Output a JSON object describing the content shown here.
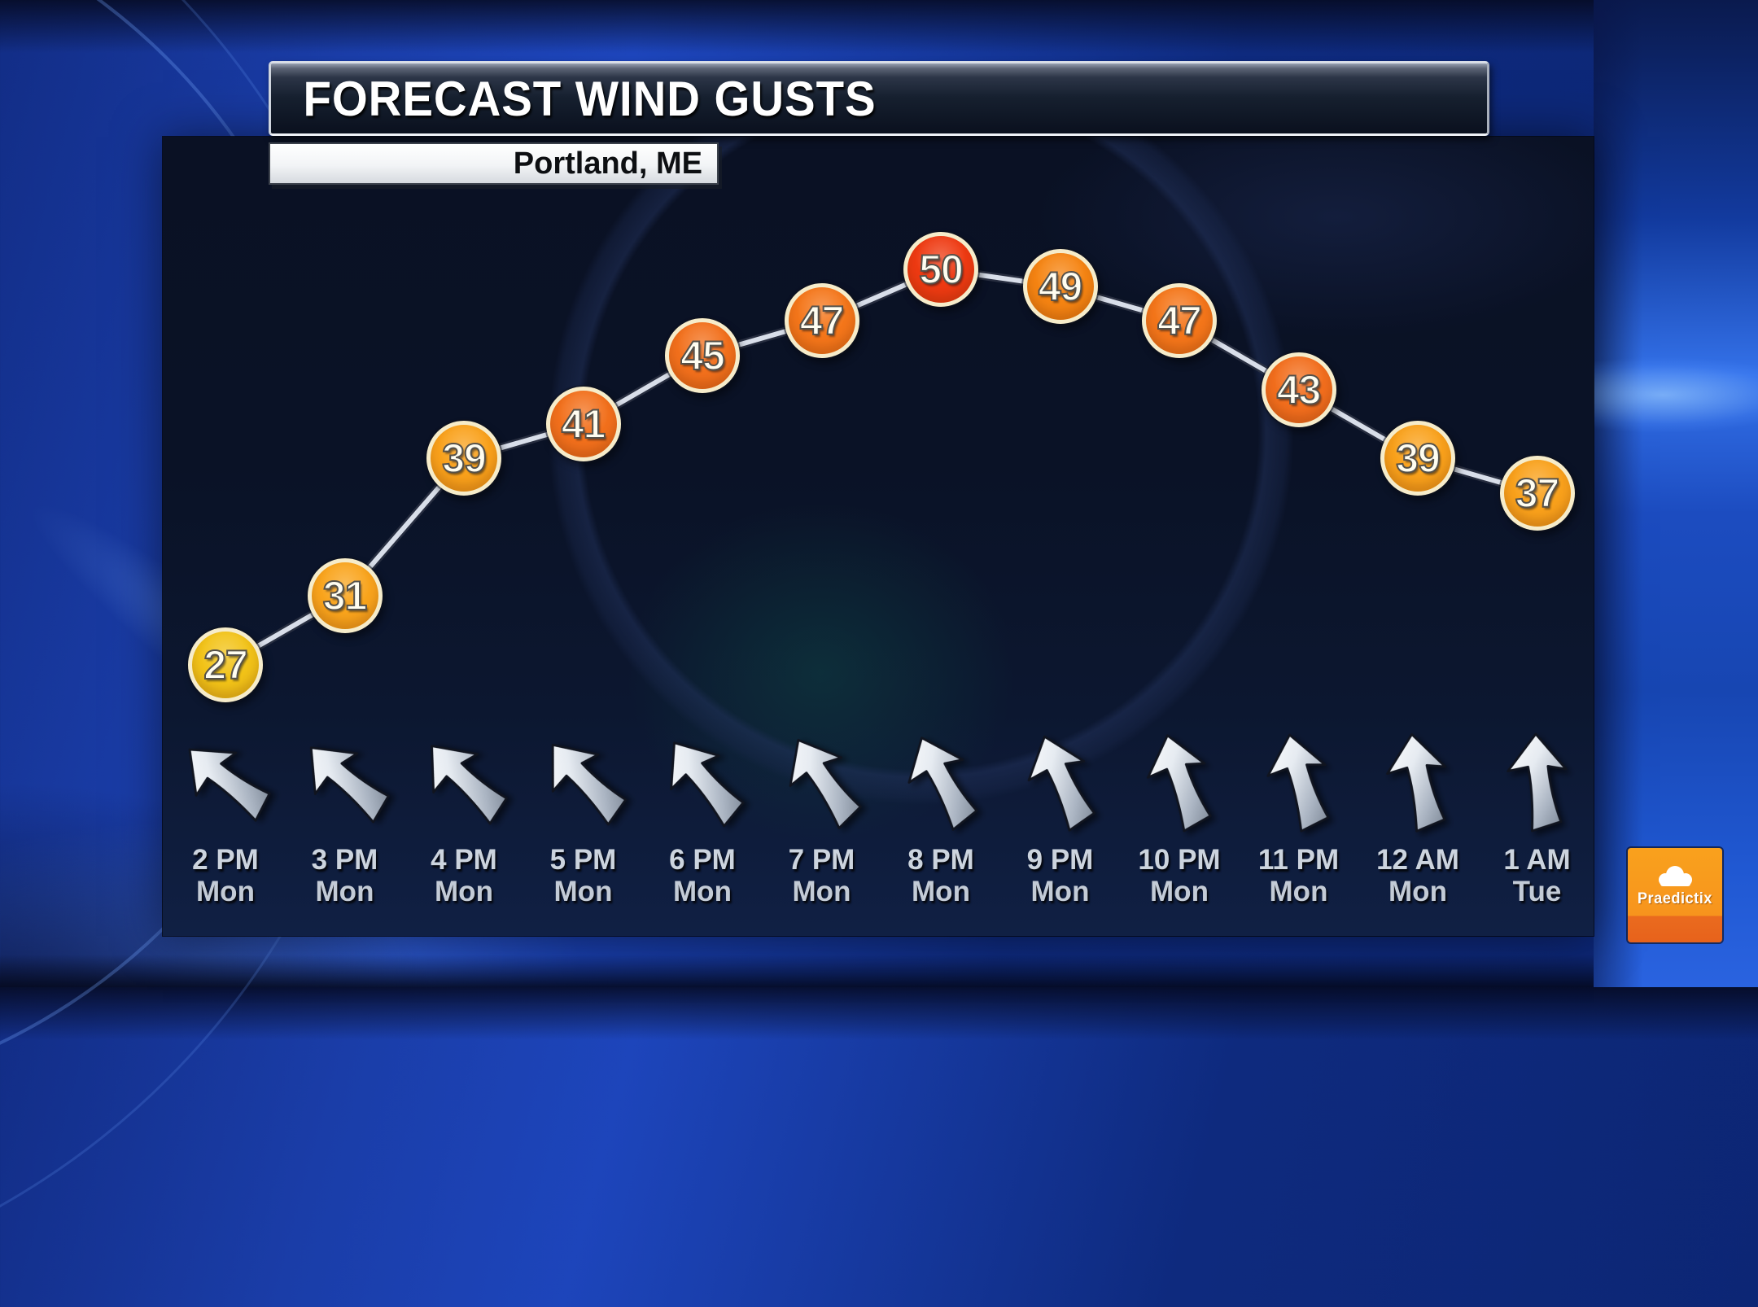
{
  "header": {
    "title": "FORECAST WIND GUSTS",
    "location": "Portland, ME"
  },
  "branding": {
    "name": "Praedictix"
  },
  "chart_data": {
    "type": "line",
    "title": "FORECAST WIND GUSTS",
    "subtitle": "Portland, ME",
    "categories": [
      "2 PM Mon",
      "3 PM Mon",
      "4 PM Mon",
      "5 PM Mon",
      "6 PM Mon",
      "7 PM Mon",
      "8 PM Mon",
      "9 PM Mon",
      "10 PM Mon",
      "11 PM Mon",
      "12 AM Mon",
      "1 AM Tue"
    ],
    "x_labels": [
      {
        "time": "2 PM",
        "day": "Mon"
      },
      {
        "time": "3 PM",
        "day": "Mon"
      },
      {
        "time": "4 PM",
        "day": "Mon"
      },
      {
        "time": "5 PM",
        "day": "Mon"
      },
      {
        "time": "6 PM",
        "day": "Mon"
      },
      {
        "time": "7 PM",
        "day": "Mon"
      },
      {
        "time": "8 PM",
        "day": "Mon"
      },
      {
        "time": "9 PM",
        "day": "Mon"
      },
      {
        "time": "10 PM",
        "day": "Mon"
      },
      {
        "time": "11 PM",
        "day": "Mon"
      },
      {
        "time": "12 AM",
        "day": "Mon"
      },
      {
        "time": "1 AM",
        "day": "Tue"
      }
    ],
    "series": [
      {
        "name": "forecast_wind_gusts",
        "values": [
          27,
          31,
          39,
          41,
          45,
          47,
          50,
          49,
          47,
          43,
          39,
          37
        ]
      }
    ],
    "point_colors": [
      "#f2c318",
      "#f9a41c",
      "#f9a11b",
      "#f2701c",
      "#f2701c",
      "#f4761a",
      "#ee3a12",
      "#f58412",
      "#f4761a",
      "#f26e1d",
      "#f9a11b",
      "#f9a11b"
    ],
    "wind_arrow_rotations_deg": [
      -47,
      -44,
      -41,
      -39,
      -35,
      -29,
      -23,
      -19,
      -14,
      -11,
      -7,
      -2
    ],
    "ylim": [
      25,
      52
    ],
    "grid": false,
    "legend": false,
    "line_color": "#d8dee9",
    "accent_colors": {
      "yellow": "#f2c318",
      "amber": "#f9a11b",
      "orange": "#f2701c",
      "red": "#ee3a12"
    }
  }
}
